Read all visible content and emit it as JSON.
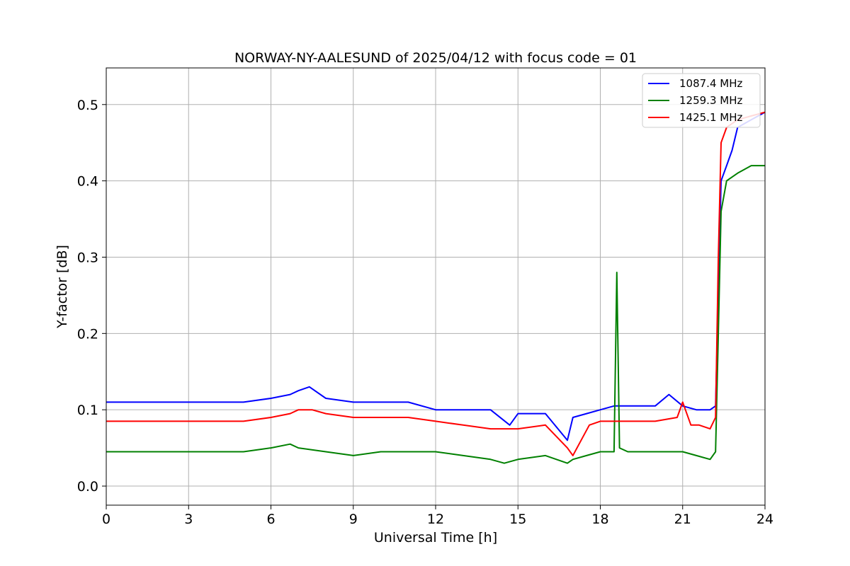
{
  "chart_data": {
    "type": "line",
    "title": "NORWAY-NY-AALESUND of 2025/04/12 with focus code = 01",
    "xlabel": "Universal Time [h]",
    "ylabel": "Y-factor [dB]",
    "xlim": [
      0,
      24
    ],
    "ylim": [
      -0.025,
      0.548
    ],
    "xticks": [
      0,
      3,
      6,
      9,
      12,
      15,
      18,
      21,
      24
    ],
    "yticks": [
      0.0,
      0.1,
      0.2,
      0.3,
      0.4,
      0.5
    ],
    "xtick_labels": [
      "0",
      "3",
      "6",
      "9",
      "12",
      "15",
      "18",
      "21",
      "24"
    ],
    "ytick_labels": [
      "0.0",
      "0.1",
      "0.2",
      "0.3",
      "0.4",
      "0.5"
    ],
    "grid": true,
    "legend_position": "top-right",
    "series": [
      {
        "name": "1087.4 MHz",
        "color": "#0000ff",
        "x": [
          0,
          1,
          2,
          3,
          4,
          5,
          6,
          6.7,
          7,
          7.4,
          8,
          9,
          10,
          11,
          12,
          13,
          14,
          14.7,
          15,
          16,
          16.8,
          17,
          17.5,
          18,
          18.5,
          19,
          20,
          20.5,
          21,
          21.5,
          22,
          22.2,
          22.3,
          22.4,
          22.6,
          22.8,
          23,
          23.5,
          24
        ],
        "y": [
          0.11,
          0.11,
          0.11,
          0.11,
          0.11,
          0.11,
          0.115,
          0.12,
          0.125,
          0.13,
          0.115,
          0.11,
          0.11,
          0.11,
          0.1,
          0.1,
          0.1,
          0.08,
          0.095,
          0.095,
          0.06,
          0.09,
          0.095,
          0.1,
          0.105,
          0.105,
          0.105,
          0.12,
          0.105,
          0.1,
          0.1,
          0.105,
          0.25,
          0.4,
          0.42,
          0.44,
          0.47,
          0.48,
          0.49
        ]
      },
      {
        "name": "1259.3 MHz",
        "color": "#008000",
        "x": [
          0,
          1,
          2,
          3,
          4,
          5,
          6,
          6.7,
          7,
          8,
          9,
          10,
          11,
          12,
          13,
          14,
          14.5,
          15,
          16,
          16.8,
          17,
          17.5,
          18,
          18.5,
          18.6,
          18.7,
          19,
          20,
          21,
          21.5,
          22,
          22.2,
          22.3,
          22.4,
          22.6,
          23,
          23.5,
          24
        ],
        "y": [
          0.045,
          0.045,
          0.045,
          0.045,
          0.045,
          0.045,
          0.05,
          0.055,
          0.05,
          0.045,
          0.04,
          0.045,
          0.045,
          0.045,
          0.04,
          0.035,
          0.03,
          0.035,
          0.04,
          0.03,
          0.035,
          0.04,
          0.045,
          0.045,
          0.28,
          0.05,
          0.045,
          0.045,
          0.045,
          0.04,
          0.035,
          0.045,
          0.2,
          0.36,
          0.4,
          0.41,
          0.42,
          0.42
        ]
      },
      {
        "name": "1425.1 MHz",
        "color": "#ff0000",
        "x": [
          0,
          1,
          2,
          3,
          4,
          5,
          6,
          6.7,
          7,
          7.5,
          8,
          9,
          10,
          11,
          12,
          13,
          14,
          15,
          16,
          16.8,
          17,
          17.3,
          17.6,
          18,
          19,
          20,
          20.8,
          21,
          21.3,
          21.6,
          22,
          22.2,
          22.3,
          22.4,
          22.6,
          23,
          23.5,
          24
        ],
        "y": [
          0.085,
          0.085,
          0.085,
          0.085,
          0.085,
          0.085,
          0.09,
          0.095,
          0.1,
          0.1,
          0.095,
          0.09,
          0.09,
          0.09,
          0.085,
          0.08,
          0.075,
          0.075,
          0.08,
          0.05,
          0.04,
          0.06,
          0.08,
          0.085,
          0.085,
          0.085,
          0.09,
          0.11,
          0.08,
          0.08,
          0.075,
          0.09,
          0.3,
          0.45,
          0.47,
          0.48,
          0.485,
          0.49
        ]
      }
    ]
  }
}
